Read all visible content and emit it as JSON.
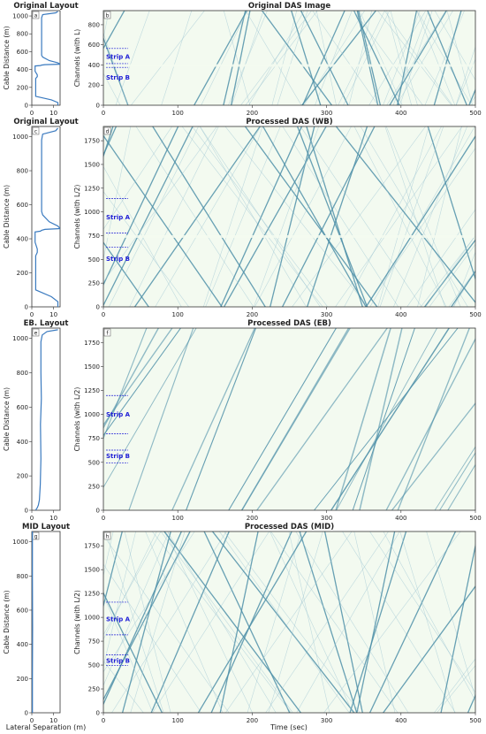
{
  "figure": {
    "shared_xlabel_left": "Lateral Separation (m)",
    "shared_xlabel_right": "Time (sec)",
    "colors": {
      "background": "#f3faf0",
      "wave": "#4d8fa8",
      "wave_light": "#9cc4d2",
      "layout_line": "#3a7abf",
      "strip": "#1f1fd6"
    }
  },
  "rows": [
    {
      "layout": {
        "title": "Original Layout",
        "letter": "a",
        "ylabel": "Cable Distance (m)",
        "xticks": [
          "0",
          "10"
        ],
        "yticks": [
          "0",
          "200",
          "400",
          "600",
          "800",
          "1000"
        ]
      },
      "das": {
        "title": "Original DAS Image",
        "letter": "b",
        "ylabel": "Channels (with L)",
        "xticks": [
          "0",
          "100",
          "200",
          "300",
          "400",
          "500"
        ],
        "yticks": [
          "0",
          "200",
          "400",
          "600",
          "800"
        ],
        "strips": [
          "Strip A",
          "Strip B"
        ]
      }
    },
    {
      "layout": {
        "title": "Original Layout",
        "letter": "c",
        "ylabel": "Cable Distance (m)",
        "xticks": [
          "0",
          "10"
        ],
        "yticks": [
          "0",
          "200",
          "400",
          "600",
          "800",
          "1000"
        ]
      },
      "das": {
        "title": "Processed DAS (WB)",
        "letter": "d",
        "ylabel": "Channels (with L/2)",
        "xticks": [
          "0",
          "100",
          "200",
          "300",
          "400",
          "500"
        ],
        "yticks": [
          "0",
          "250",
          "500",
          "750",
          "1000",
          "1250",
          "1500",
          "1750"
        ],
        "strips": [
          "Strip A",
          "Strip B"
        ]
      }
    },
    {
      "layout": {
        "title": "EB. Layout",
        "letter": "e",
        "ylabel": "Cable Distance (m)",
        "xticks": [
          "0",
          "10"
        ],
        "yticks": [
          "0",
          "200",
          "400",
          "600",
          "800",
          "1000"
        ]
      },
      "das": {
        "title": "Processed DAS (EB)",
        "letter": "f",
        "ylabel": "Channels (with L/2)",
        "xticks": [
          "0",
          "100",
          "200",
          "300",
          "400",
          "500"
        ],
        "yticks": [
          "0",
          "250",
          "500",
          "750",
          "1000",
          "1250",
          "1500",
          "1750"
        ],
        "strips": [
          "Strip A",
          "Strip B"
        ]
      }
    },
    {
      "layout": {
        "title": "MID Layout",
        "letter": "g",
        "ylabel": "Cable Distance (m)",
        "xticks": [
          "0",
          "10"
        ],
        "yticks": [
          "0",
          "200",
          "400",
          "600",
          "800",
          "1000"
        ]
      },
      "das": {
        "title": "Processed DAS (MID)",
        "letter": "h",
        "ylabel": "Channels (with L/2)",
        "xticks": [
          "0",
          "100",
          "200",
          "300",
          "400",
          "500"
        ],
        "yticks": [
          "0",
          "250",
          "500",
          "750",
          "1000",
          "1250",
          "1500",
          "1750"
        ],
        "strips": [
          "Strip A",
          "Strip B"
        ]
      }
    }
  ],
  "chart_data": [
    {
      "type": "line",
      "panel": "a",
      "xlim": [
        0,
        13
      ],
      "ylim": [
        0,
        1060
      ],
      "x": [
        12,
        11,
        5,
        4.5,
        4.5,
        4.5,
        4.5,
        4.5,
        5,
        8,
        12,
        13,
        6,
        4.5,
        4,
        1.5,
        1.5,
        2.5,
        2.5,
        1.8,
        1.8,
        9,
        12,
        12
      ],
      "y": [
        1050,
        1035,
        1015,
        980,
        800,
        650,
        580,
        560,
        540,
        500,
        475,
        460,
        455,
        450,
        445,
        440,
        380,
        340,
        320,
        300,
        100,
        60,
        30,
        0
      ]
    },
    {
      "type": "scatter",
      "panel": "b",
      "xlabel": "Time (sec)",
      "ylabel": "Channels (with L)",
      "xlim": [
        0,
        500
      ],
      "ylim": [
        0,
        940
      ],
      "strips": [
        {
          "name": "Strip A",
          "y": [
            420,
            620
          ]
        },
        {
          "name": "Strip B",
          "y": [
            0,
            420
          ]
        }
      ]
    },
    {
      "type": "line",
      "panel": "c",
      "xlim": [
        0,
        13
      ],
      "ylim": [
        0,
        1060
      ],
      "x": [
        12,
        11,
        5,
        4.5,
        4.5,
        4.5,
        4.5,
        4.5,
        5,
        8,
        12,
        13,
        6,
        4.5,
        4,
        1.5,
        1.5,
        2.5,
        2.5,
        1.8,
        1.8,
        9,
        12,
        12
      ],
      "y": [
        1050,
        1035,
        1015,
        980,
        800,
        650,
        580,
        560,
        540,
        500,
        475,
        460,
        455,
        450,
        445,
        440,
        380,
        340,
        320,
        300,
        100,
        60,
        30,
        0
      ]
    },
    {
      "type": "scatter",
      "panel": "d",
      "xlabel": "Time (sec)",
      "ylabel": "Channels (with L/2)",
      "xlim": [
        0,
        500
      ],
      "ylim": [
        0,
        1900
      ],
      "strips": [
        {
          "name": "Strip A",
          "y": [
            850,
            1200
          ]
        },
        {
          "name": "Strip B",
          "y": [
            0,
            650
          ]
        }
      ]
    },
    {
      "type": "line",
      "panel": "e",
      "xlim": [
        0,
        13
      ],
      "ylim": [
        0,
        1060
      ],
      "x": [
        12,
        7,
        4.8,
        4.2,
        4.2,
        4.4,
        4.0,
        4.2,
        3.9,
        3.5,
        3.0,
        2.5,
        2.0,
        1.8
      ],
      "y": [
        1050,
        1040,
        1020,
        980,
        800,
        650,
        500,
        300,
        150,
        60,
        30,
        15,
        5,
        0
      ]
    },
    {
      "type": "scatter",
      "panel": "f",
      "xlabel": "Time (sec)",
      "ylabel": "Channels (with L/2)",
      "xlim": [
        0,
        500
      ],
      "ylim": [
        0,
        1900
      ],
      "strips": [
        {
          "name": "Strip A",
          "y": [
            850,
            1200
          ]
        },
        {
          "name": "Strip B",
          "y": [
            0,
            650
          ]
        }
      ]
    },
    {
      "type": "line",
      "panel": "g",
      "xlim": [
        0,
        13
      ],
      "ylim": [
        0,
        1060
      ],
      "x": [
        0.3,
        0.3,
        0.35,
        0.3,
        0.3
      ],
      "y": [
        1060,
        800,
        500,
        200,
        0
      ]
    },
    {
      "type": "scatter",
      "panel": "h",
      "xlabel": "Time (sec)",
      "ylabel": "Channels (with L/2)",
      "xlim": [
        0,
        500
      ],
      "ylim": [
        0,
        1900
      ],
      "strips": [
        {
          "name": "Strip A",
          "y": [
            850,
            1200
          ]
        },
        {
          "name": "Strip B",
          "y": [
            0,
            650
          ]
        }
      ]
    }
  ]
}
